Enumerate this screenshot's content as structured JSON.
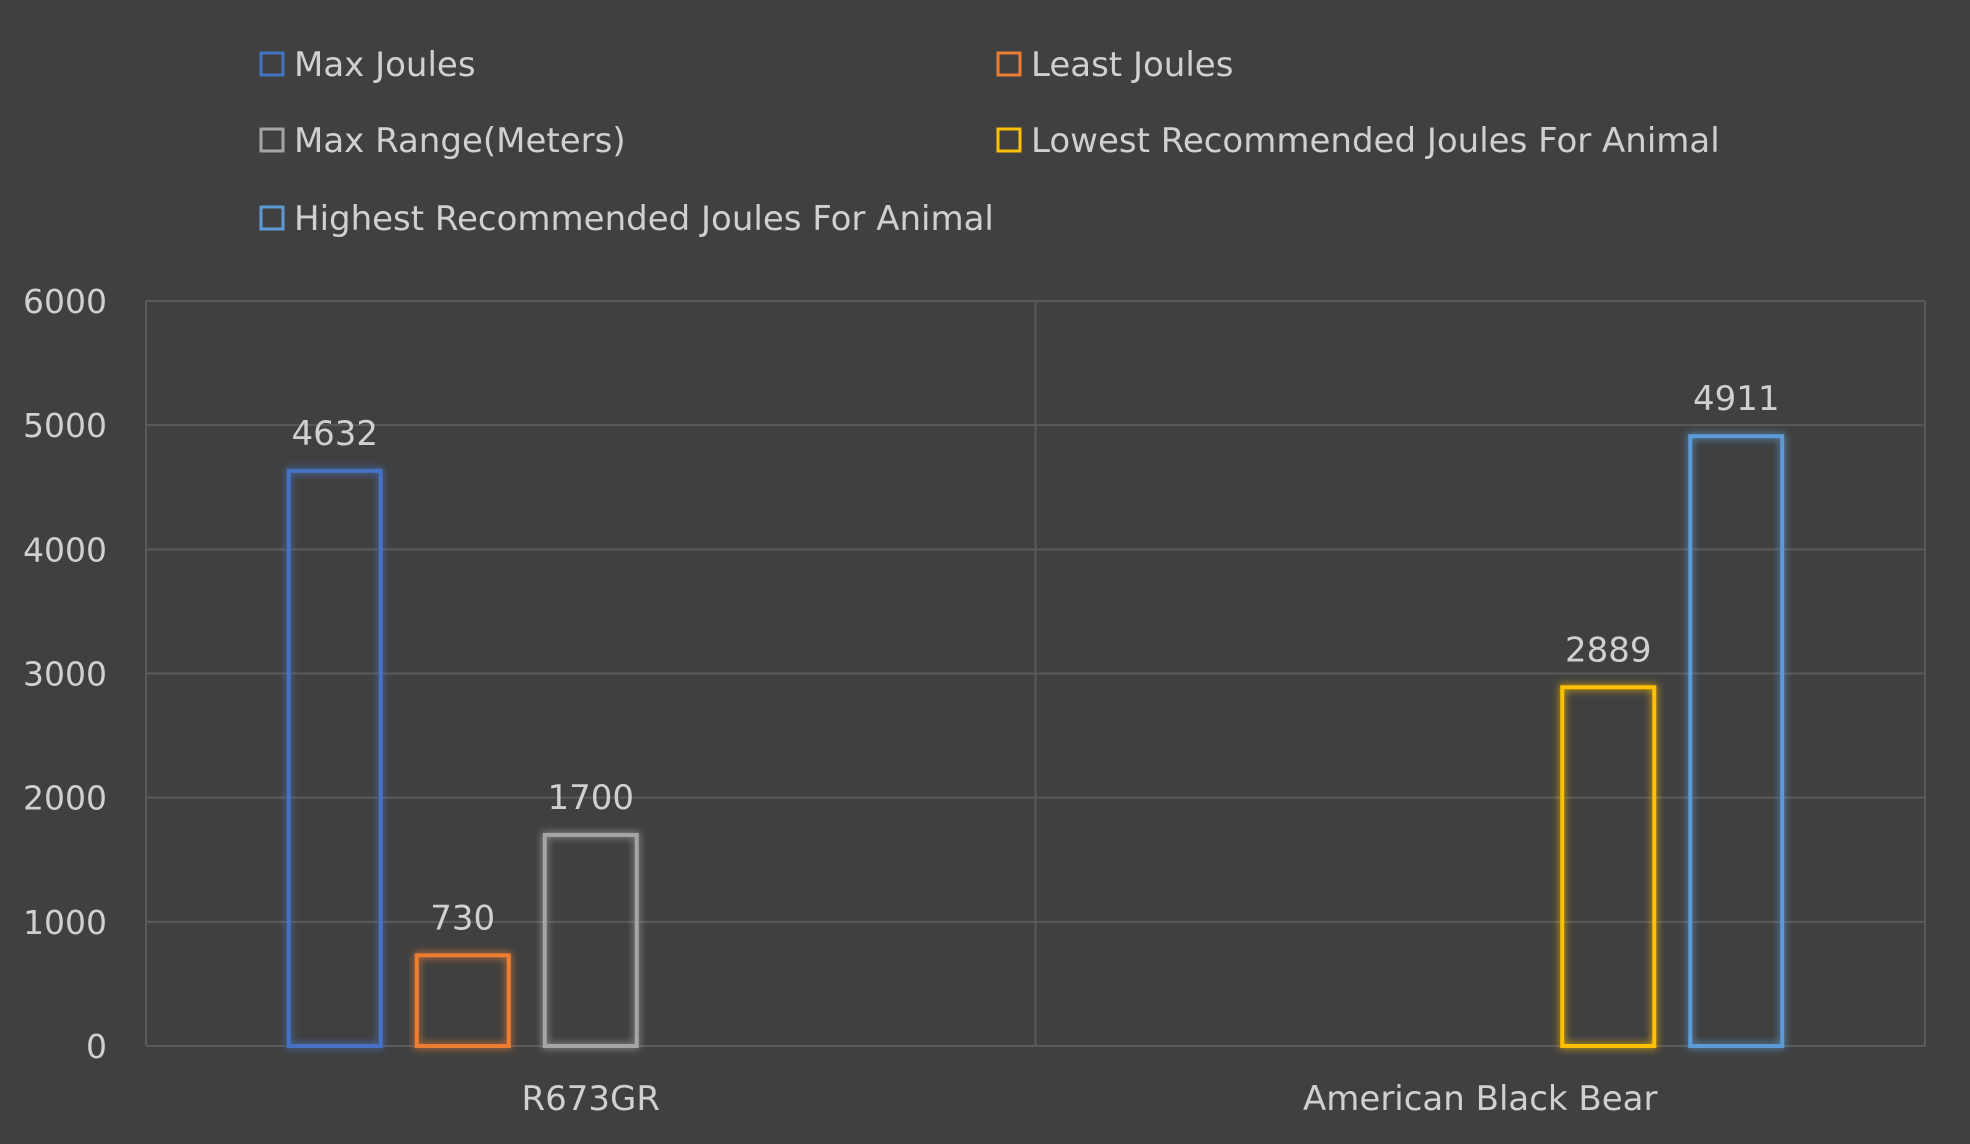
{
  "chart_data": {
    "type": "bar",
    "title": "",
    "xlabel": "",
    "ylabel": "",
    "ylim": [
      0,
      6000
    ],
    "yticks": [
      0,
      1000,
      2000,
      3000,
      4000,
      5000,
      6000
    ],
    "grid": true,
    "legend_position": "top",
    "background_color": "#404040",
    "gridline_color": "#5a5a5a",
    "categories": [
      "R673GR",
      "American Black Bear"
    ],
    "series": [
      {
        "name": "Max Joules",
        "color": "#4472c4",
        "values": [
          4632,
          null
        ]
      },
      {
        "name": "Least Joules",
        "color": "#ed7d31",
        "values": [
          730,
          null
        ]
      },
      {
        "name": "Max Range(Meters)",
        "color": "#a5a5a5",
        "values": [
          1700,
          null
        ]
      },
      {
        "name": "Lowest Recommended Joules For Animal",
        "color": "#ffc000",
        "values": [
          null,
          2889
        ]
      },
      {
        "name": "Highest Recommended Joules For Animal",
        "color": "#5b9bd5",
        "values": [
          null,
          4911
        ]
      }
    ]
  }
}
